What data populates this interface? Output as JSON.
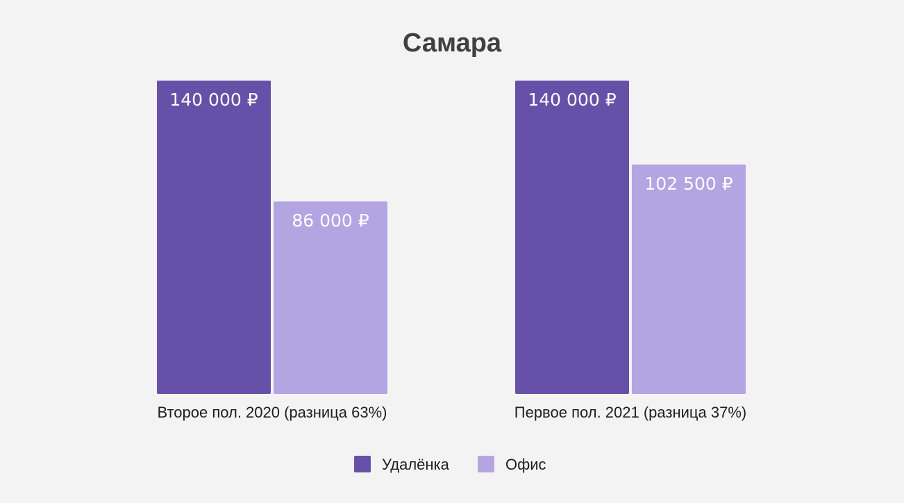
{
  "chart_data": {
    "type": "bar",
    "title": "Самара",
    "categories": [
      "Второе пол. 2020 (разница 63%)",
      "Первое пол. 2021 (разница 37%)"
    ],
    "series": [
      {
        "name": "Удалёнка",
        "color": "#6750a8",
        "values": [
          140000,
          140000
        ],
        "labels": [
          "140 000 ₽",
          "140 000 ₽"
        ]
      },
      {
        "name": "Офис",
        "color": "#b3a4e2",
        "values": [
          86000,
          102500
        ],
        "labels": [
          "86 000 ₽",
          "102 500 ₽"
        ]
      }
    ],
    "xlabel": "",
    "ylabel": "",
    "ylim": [
      0,
      140000
    ],
    "grid": false,
    "legend": "bottom"
  }
}
